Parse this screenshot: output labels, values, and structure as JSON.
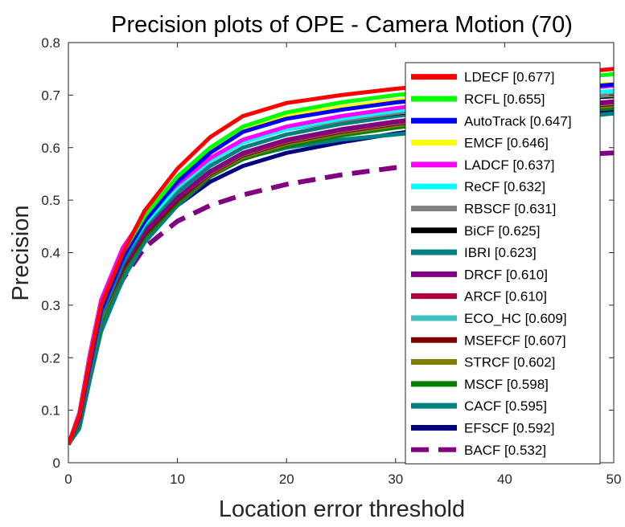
{
  "chart_data": {
    "type": "line",
    "title": "Precision plots of OPE - Camera Motion (70)",
    "xlabel": "Location error threshold",
    "ylabel": "Precision",
    "xlim": [
      0,
      50
    ],
    "ylim": [
      0,
      0.8
    ],
    "xticks": [
      "0",
      "10",
      "20",
      "30",
      "40",
      "50"
    ],
    "yticks": [
      "0",
      "0.1",
      "0.2",
      "0.3",
      "0.4",
      "0.5",
      "0.6",
      "0.7",
      "0.8"
    ],
    "grid": false,
    "legend_position": "top-right",
    "x": [
      0,
      1,
      2,
      3,
      5,
      7,
      10,
      13,
      16,
      20,
      25,
      30,
      35,
      40,
      45,
      50
    ],
    "series": [
      {
        "name": "LDECF [0.677]",
        "color": "#ff0000",
        "dashed": false,
        "values": [
          0.035,
          0.09,
          0.2,
          0.3,
          0.4,
          0.48,
          0.56,
          0.62,
          0.66,
          0.685,
          0.7,
          0.712,
          0.722,
          0.73,
          0.74,
          0.75
        ]
      },
      {
        "name": "RCFL [0.655]",
        "color": "#00ff00",
        "dashed": false,
        "values": [
          0.035,
          0.09,
          0.2,
          0.3,
          0.4,
          0.47,
          0.545,
          0.6,
          0.64,
          0.667,
          0.686,
          0.7,
          0.71,
          0.72,
          0.73,
          0.74
        ]
      },
      {
        "name": "AutoTrack [0.647]",
        "color": "#0000ff",
        "dashed": false,
        "values": [
          0.035,
          0.085,
          0.19,
          0.29,
          0.39,
          0.46,
          0.535,
          0.59,
          0.63,
          0.655,
          0.672,
          0.686,
          0.696,
          0.705,
          0.712,
          0.72
        ]
      },
      {
        "name": "EMCF [0.646]",
        "color": "#ffff00",
        "dashed": false,
        "values": [
          0.035,
          0.09,
          0.2,
          0.3,
          0.4,
          0.47,
          0.54,
          0.595,
          0.635,
          0.66,
          0.677,
          0.69,
          0.7,
          0.708,
          0.715,
          0.722
        ]
      },
      {
        "name": "LADCF [0.637]",
        "color": "#ff00ff",
        "dashed": false,
        "values": [
          0.035,
          0.095,
          0.21,
          0.31,
          0.41,
          0.47,
          0.53,
          0.58,
          0.615,
          0.64,
          0.66,
          0.675,
          0.688,
          0.698,
          0.708,
          0.718
        ]
      },
      {
        "name": "ReCF [0.632]",
        "color": "#00ffff",
        "dashed": false,
        "values": [
          0.035,
          0.085,
          0.19,
          0.29,
          0.39,
          0.455,
          0.525,
          0.575,
          0.61,
          0.635,
          0.655,
          0.67,
          0.682,
          0.692,
          0.7,
          0.708
        ]
      },
      {
        "name": "RBSCF [0.631]",
        "color": "#808080",
        "dashed": false,
        "values": [
          0.035,
          0.085,
          0.19,
          0.29,
          0.39,
          0.46,
          0.53,
          0.58,
          0.612,
          0.635,
          0.652,
          0.666,
          0.677,
          0.686,
          0.694,
          0.7
        ]
      },
      {
        "name": "BiCF [0.625]",
        "color": "#000000",
        "dashed": false,
        "values": [
          0.035,
          0.085,
          0.19,
          0.29,
          0.39,
          0.46,
          0.525,
          0.575,
          0.61,
          0.635,
          0.652,
          0.665,
          0.675,
          0.684,
          0.692,
          0.698
        ]
      },
      {
        "name": "IBRI [0.623]",
        "color": "#008080",
        "dashed": false,
        "values": [
          0.035,
          0.08,
          0.18,
          0.28,
          0.38,
          0.45,
          0.515,
          0.565,
          0.6,
          0.625,
          0.645,
          0.66,
          0.672,
          0.682,
          0.69,
          0.698
        ]
      },
      {
        "name": "DRCF [0.610]",
        "color": "#800080",
        "dashed": false,
        "values": [
          0.035,
          0.08,
          0.18,
          0.28,
          0.375,
          0.44,
          0.505,
          0.555,
          0.59,
          0.615,
          0.635,
          0.65,
          0.662,
          0.672,
          0.68,
          0.688
        ]
      },
      {
        "name": "ARCF [0.610]",
        "color": "#b00040",
        "dashed": false,
        "values": [
          0.035,
          0.08,
          0.18,
          0.28,
          0.375,
          0.44,
          0.505,
          0.553,
          0.588,
          0.613,
          0.633,
          0.648,
          0.66,
          0.67,
          0.678,
          0.686
        ]
      },
      {
        "name": "ECO_HC [0.609]",
        "color": "#40c0c0",
        "dashed": false,
        "values": [
          0.035,
          0.08,
          0.18,
          0.28,
          0.375,
          0.44,
          0.505,
          0.552,
          0.587,
          0.612,
          0.632,
          0.647,
          0.659,
          0.669,
          0.677,
          0.685
        ]
      },
      {
        "name": "MSEFCF [0.607]",
        "color": "#800000",
        "dashed": false,
        "values": [
          0.035,
          0.08,
          0.18,
          0.28,
          0.37,
          0.435,
          0.5,
          0.55,
          0.585,
          0.61,
          0.63,
          0.645,
          0.657,
          0.667,
          0.675,
          0.683
        ]
      },
      {
        "name": "STRCF [0.602]",
        "color": "#808000",
        "dashed": false,
        "values": [
          0.035,
          0.08,
          0.175,
          0.275,
          0.37,
          0.435,
          0.5,
          0.548,
          0.582,
          0.607,
          0.627,
          0.642,
          0.654,
          0.664,
          0.672,
          0.68
        ]
      },
      {
        "name": "MSCF [0.598]",
        "color": "#008000",
        "dashed": false,
        "values": [
          0.035,
          0.075,
          0.175,
          0.27,
          0.365,
          0.43,
          0.495,
          0.545,
          0.578,
          0.603,
          0.623,
          0.638,
          0.65,
          0.66,
          0.668,
          0.675
        ]
      },
      {
        "name": "CACF [0.595]",
        "color": "#008080",
        "dashed": false,
        "values": [
          0.035,
          0.065,
          0.16,
          0.25,
          0.35,
          0.42,
          0.49,
          0.545,
          0.58,
          0.6,
          0.615,
          0.625,
          0.635,
          0.645,
          0.655,
          0.665
        ]
      },
      {
        "name": "EFSCF [0.592]",
        "color": "#000080",
        "dashed": false,
        "values": [
          0.035,
          0.075,
          0.175,
          0.27,
          0.365,
          0.43,
          0.49,
          0.535,
          0.565,
          0.59,
          0.61,
          0.627,
          0.641,
          0.652,
          0.662,
          0.672
        ]
      },
      {
        "name": "BACF [0.532]",
        "color": "#800080",
        "dashed": true,
        "values": [
          0.035,
          0.08,
          0.17,
          0.26,
          0.35,
          0.41,
          0.46,
          0.49,
          0.51,
          0.53,
          0.548,
          0.562,
          0.572,
          0.58,
          0.585,
          0.59
        ]
      }
    ]
  }
}
